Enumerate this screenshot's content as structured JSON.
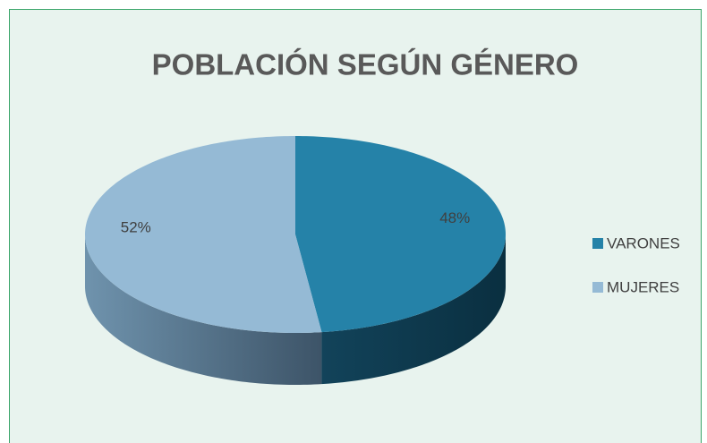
{
  "chart_data": {
    "type": "pie",
    "title": "POBLACIÓN SEGÚN GÉNERO",
    "categories": [
      "VARONES",
      "MUJERES"
    ],
    "values": [
      48,
      52
    ],
    "value_labels": [
      "48%",
      "52%"
    ],
    "colors": [
      "#2582a8",
      "#95bad5"
    ],
    "legend": "right"
  }
}
